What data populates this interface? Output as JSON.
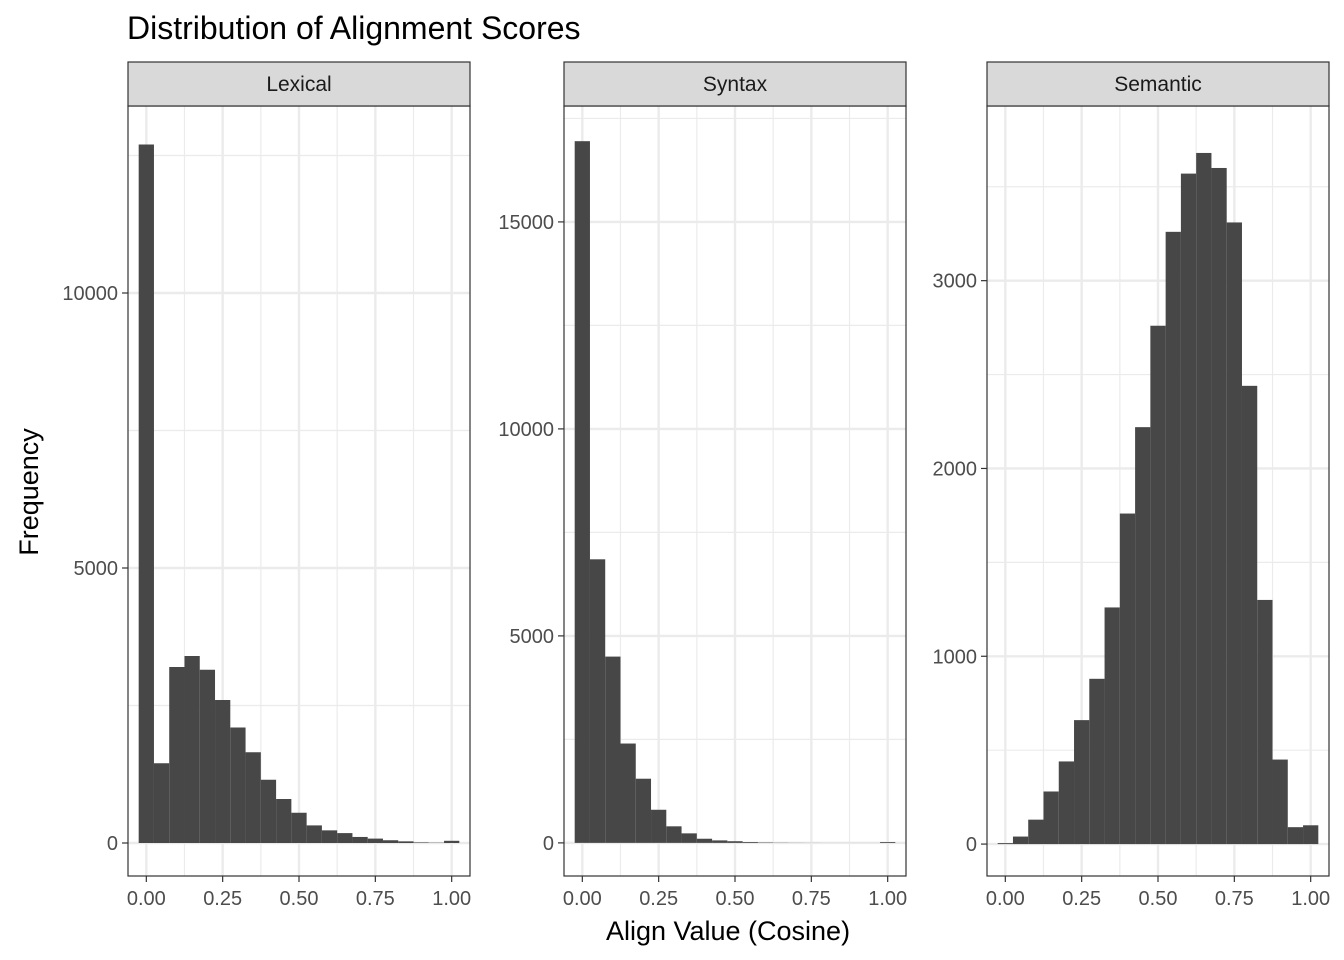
{
  "chart_data": {
    "type": "bar",
    "title": "Distribution of Alignment Scores",
    "xlabel": "Align Value (Cosine)",
    "ylabel": "Frequency",
    "bar_color": "#474747",
    "grid": true,
    "bin_width": 0.05,
    "bin_centers": [
      0.0,
      0.05,
      0.1,
      0.15,
      0.2,
      0.25,
      0.3,
      0.35,
      0.4,
      0.45,
      0.5,
      0.55,
      0.6,
      0.65,
      0.7,
      0.75,
      0.8,
      0.85,
      0.9,
      0.95,
      1.0
    ],
    "xlim": [
      -0.06,
      1.06
    ],
    "x_ticks": [
      0.0,
      0.25,
      0.5,
      0.75,
      1.0
    ],
    "x_tick_labels": [
      "0.00",
      "0.25",
      "0.50",
      "0.75",
      "1.00"
    ],
    "panels": [
      {
        "name": "Lexical",
        "ylim": [
          -600,
          13400
        ],
        "y_ticks": [
          0,
          5000,
          10000
        ],
        "y_tick_labels": [
          "0",
          "5000",
          "10000"
        ],
        "values": [
          12700,
          1450,
          3200,
          3400,
          3150,
          2600,
          2100,
          1650,
          1150,
          800,
          550,
          320,
          230,
          180,
          110,
          80,
          50,
          30,
          10,
          5,
          40
        ]
      },
      {
        "name": "Syntax",
        "ylim": [
          -800,
          17800
        ],
        "y_ticks": [
          0,
          5000,
          10000,
          15000
        ],
        "y_tick_labels": [
          "0",
          "5000",
          "10000",
          "15000"
        ],
        "values": [
          16950,
          6850,
          4500,
          2400,
          1550,
          800,
          400,
          230,
          100,
          60,
          40,
          20,
          10,
          5,
          3,
          2,
          1,
          1,
          1,
          1,
          20
        ]
      },
      {
        "name": "Semantic",
        "ylim": [
          -170,
          3930
        ],
        "y_ticks": [
          0,
          1000,
          2000,
          3000
        ],
        "y_tick_labels": [
          "0",
          "1000",
          "2000",
          "3000"
        ],
        "values": [
          5,
          40,
          130,
          280,
          440,
          660,
          880,
          1260,
          1760,
          2220,
          2760,
          3260,
          3570,
          3680,
          3600,
          3310,
          2440,
          1300,
          450,
          90,
          100
        ]
      }
    ]
  }
}
